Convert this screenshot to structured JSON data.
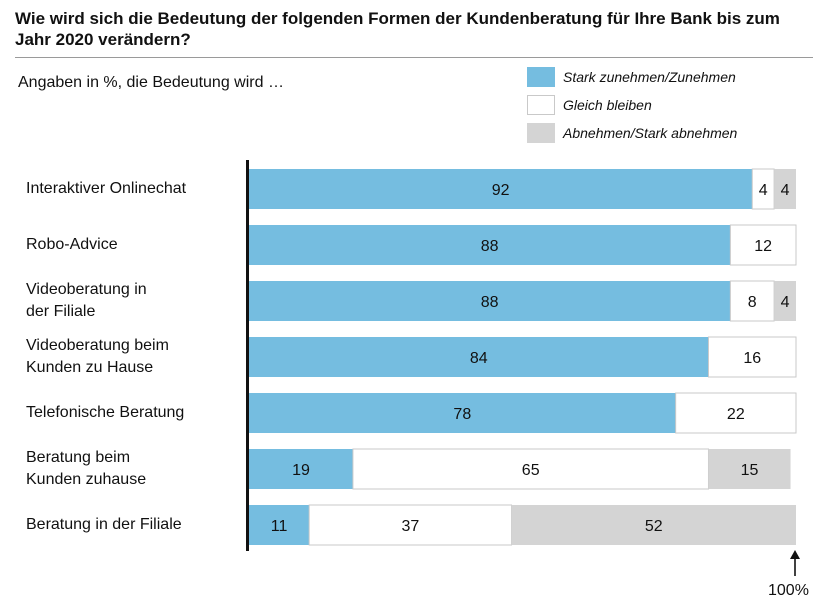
{
  "chart_data": {
    "type": "bar",
    "orientation": "horizontal",
    "stacked": true,
    "title": "Wie wird sich die Bedeutung der folgenden Formen der Kundenberatung für Ihre Bank bis zum Jahr 2020 verändern?",
    "subtitle": "Angaben in %, die Bedeutung wird …",
    "categories": [
      "Interaktiver Onlinechat",
      "Robo-Advice",
      "Videoberatung in der Filiale",
      "Videoberatung beim Kunden zu Hause",
      "Telefonische Beratung",
      "Beratung beim Kunden zuhause",
      "Beratung in der Filiale"
    ],
    "series": [
      {
        "name": "Stark zunehmen/Zunehmen",
        "color": "#75bde0",
        "values": [
          92,
          88,
          88,
          84,
          78,
          19,
          11
        ]
      },
      {
        "name": "Gleich bleiben",
        "color": "#ffffff",
        "values": [
          4,
          12,
          8,
          16,
          22,
          65,
          37
        ]
      },
      {
        "name": "Abnehmen/Stark abnehmen",
        "color": "#d4d4d4",
        "values": [
          4,
          0,
          4,
          0,
          0,
          15,
          52
        ]
      }
    ],
    "xlim": [
      0,
      100
    ],
    "end_marker_label": "100%",
    "legend_position": "top-right",
    "grid": false
  },
  "row_labels": [
    [
      "Interaktiver Onlinechat"
    ],
    [
      "Robo-Advice"
    ],
    [
      "Videoberatung in",
      "der Filiale"
    ],
    [
      "Videoberatung beim",
      "Kunden zu Hause"
    ],
    [
      "Telefonische Beratung"
    ],
    [
      "Beratung beim",
      "Kunden zuhause"
    ],
    [
      "Beratung in der Filiale"
    ]
  ],
  "icons": {
    "end_marker": "up-arrow-icon"
  }
}
